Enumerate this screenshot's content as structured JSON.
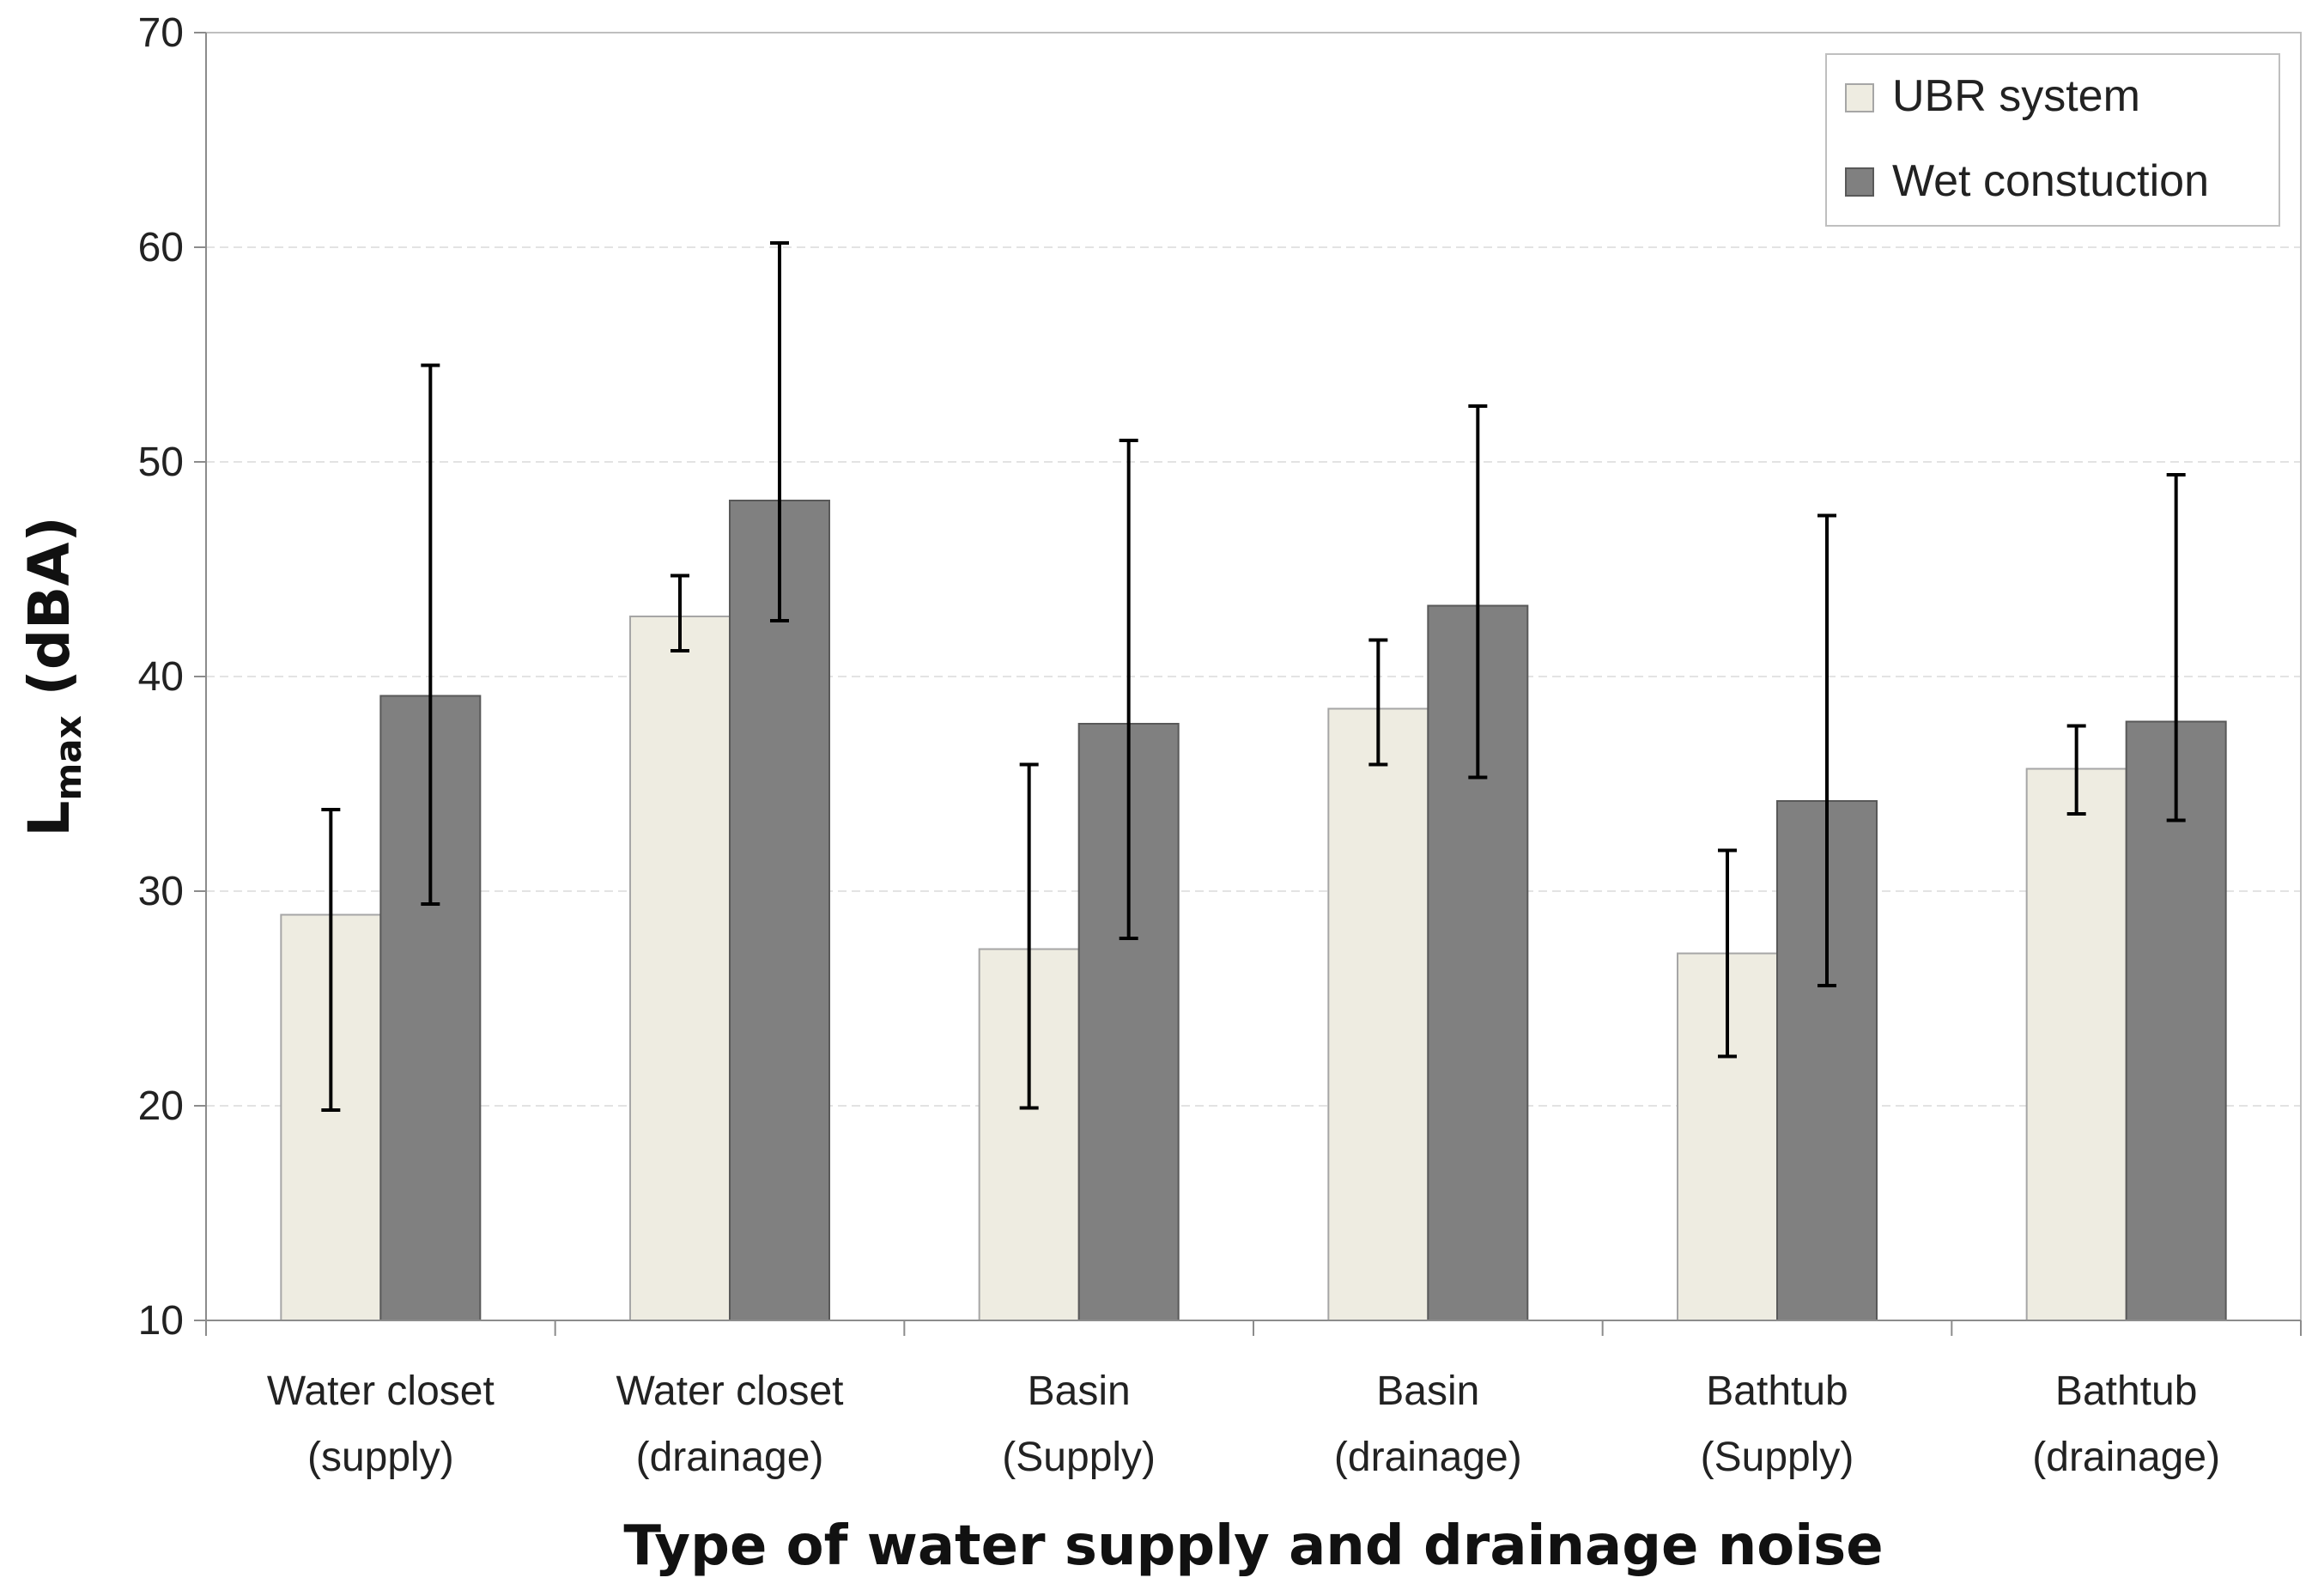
{
  "chart_data": {
    "type": "bar",
    "title": "",
    "xlabel": "Type of water supply and drainage noise",
    "ylabel_main": "L",
    "ylabel_sub": "max",
    "ylabel_unit": " (dBA)",
    "ylim": [
      10,
      70
    ],
    "yticks": [
      "10",
      "20",
      "30",
      "40",
      "50",
      "60",
      "70"
    ],
    "grid": true,
    "legend_position": "top-right",
    "categories": [
      [
        "Water closet",
        "(supply)"
      ],
      [
        "Water closet",
        "(drainage)"
      ],
      [
        "Basin",
        "(Supply)"
      ],
      [
        "Basin",
        "(drainage)"
      ],
      [
        "Bathtub",
        "(Supply)"
      ],
      [
        "Bathtub",
        "(drainage)"
      ]
    ],
    "series": [
      {
        "name": "UBR system",
        "color": "#eeece1",
        "values": [
          28.9,
          42.8,
          27.3,
          38.5,
          27.1,
          35.7
        ],
        "err_low": [
          19.8,
          41.2,
          19.9,
          35.9,
          22.3,
          33.6
        ],
        "err_high": [
          33.8,
          44.7,
          35.9,
          41.7,
          31.9,
          37.7
        ]
      },
      {
        "name": "Wet constuction",
        "color": "#808080",
        "values": [
          39.1,
          48.2,
          37.8,
          43.3,
          34.2,
          37.9
        ],
        "err_low": [
          29.4,
          42.6,
          27.8,
          35.3,
          25.6,
          33.3
        ],
        "err_high": [
          54.5,
          60.2,
          51.0,
          52.6,
          47.5,
          49.4
        ]
      }
    ]
  }
}
